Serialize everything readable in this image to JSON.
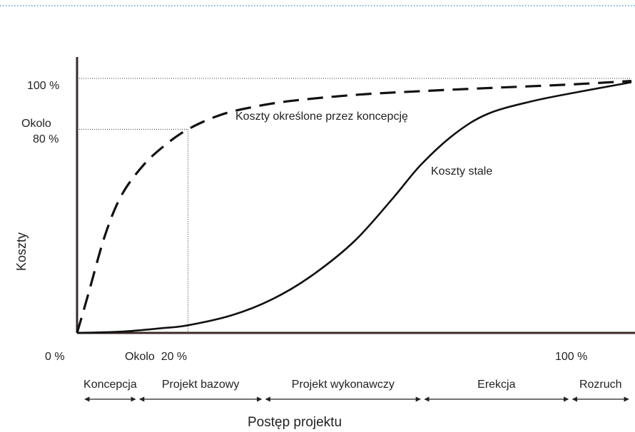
{
  "colors": {
    "top_rule": "#2b8cc4",
    "axis": "#3a2a28",
    "curve": "#111111",
    "text": "#222222",
    "guide": "#333333"
  },
  "chart_data": {
    "type": "line",
    "xlabel": "Postęp projektu",
    "ylabel": "Koszty",
    "xlim": [
      0,
      100
    ],
    "ylim": [
      0,
      100
    ],
    "x_tick_labels": [
      {
        "x": 0,
        "label": "0 %"
      },
      {
        "x": 20,
        "label": "Okolo  20 %"
      },
      {
        "x": 100,
        "label": "100 %"
      }
    ],
    "y_tick_labels": [
      {
        "y": 100,
        "label": "100 %"
      },
      {
        "y": 80,
        "label": [
          "Okolo",
          "80 %"
        ]
      }
    ],
    "reference_point": {
      "x": 20,
      "y": 80
    },
    "series": [
      {
        "name": "Koszty określone przez koncepcję",
        "style": "dashed",
        "points": [
          [
            0,
            0
          ],
          [
            2,
            15
          ],
          [
            5,
            38
          ],
          [
            8,
            54
          ],
          [
            12,
            66
          ],
          [
            16,
            74
          ],
          [
            20,
            80
          ],
          [
            25,
            85
          ],
          [
            30,
            88
          ],
          [
            38,
            91
          ],
          [
            50,
            93.5
          ],
          [
            62,
            95
          ],
          [
            75,
            96.3
          ],
          [
            88,
            97.5
          ],
          [
            100,
            99
          ]
        ]
      },
      {
        "name": "Koszty stale",
        "style": "solid",
        "points": [
          [
            0,
            0
          ],
          [
            8,
            0.5
          ],
          [
            15,
            1.8
          ],
          [
            20,
            3
          ],
          [
            28,
            7
          ],
          [
            35,
            13
          ],
          [
            42,
            22
          ],
          [
            50,
            36
          ],
          [
            57,
            53
          ],
          [
            62,
            66
          ],
          [
            68,
            78
          ],
          [
            74,
            86
          ],
          [
            82,
            91
          ],
          [
            90,
            94.5
          ],
          [
            100,
            98.5
          ]
        ]
      }
    ],
    "phases": [
      {
        "label": "Koncepcja",
        "from": 0,
        "to": 10
      },
      {
        "label": "Projekt bazowy",
        "from": 10,
        "to": 33
      },
      {
        "label": "Projekt wykonawczy",
        "from": 33,
        "to": 62
      },
      {
        "label": "Erekcja",
        "from": 62,
        "to": 89
      },
      {
        "label": "Rozruch",
        "from": 89,
        "to": 100
      }
    ]
  }
}
